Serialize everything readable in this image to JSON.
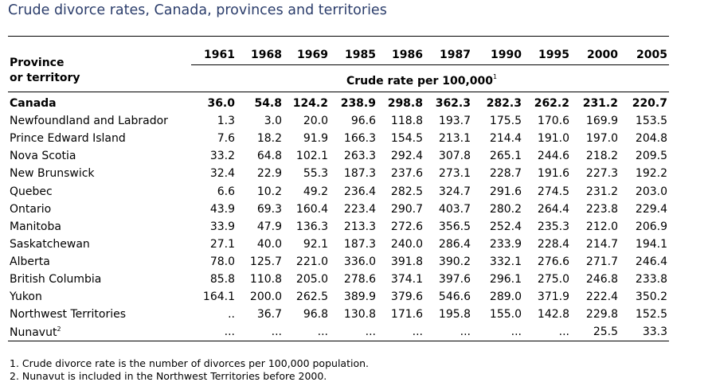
{
  "title": "Crude divorce rates, Canada, provinces and territories",
  "stub_header": [
    "Province",
    "or territory"
  ],
  "years": [
    "1961",
    "1968",
    "1969",
    "1985",
    "1986",
    "1987",
    "1990",
    "1995",
    "2000",
    "2005"
  ],
  "unit_label": "Crude rate per 100,000",
  "unit_note_ref": "1",
  "rows": [
    {
      "name": "Canada",
      "values": [
        "36.0",
        "54.8",
        "124.2",
        "238.9",
        "298.8",
        "362.3",
        "282.3",
        "262.2",
        "231.2",
        "220.7"
      ]
    },
    {
      "name": "Newfoundland and Labrador",
      "values": [
        "1.3",
        "3.0",
        "20.0",
        "96.6",
        "118.8",
        "193.7",
        "175.5",
        "170.6",
        "169.9",
        "153.5"
      ]
    },
    {
      "name": "Prince Edward Island",
      "values": [
        "7.6",
        "18.2",
        "91.9",
        "166.3",
        "154.5",
        "213.1",
        "214.4",
        "191.0",
        "197.0",
        "204.8"
      ]
    },
    {
      "name": "Nova Scotia",
      "values": [
        "33.2",
        "64.8",
        "102.1",
        "263.3",
        "292.4",
        "307.8",
        "265.1",
        "244.6",
        "218.2",
        "209.5"
      ]
    },
    {
      "name": "New Brunswick",
      "values": [
        "32.4",
        "22.9",
        "55.3",
        "187.3",
        "237.6",
        "273.1",
        "228.7",
        "191.6",
        "227.3",
        "192.2"
      ]
    },
    {
      "name": "Quebec",
      "values": [
        "6.6",
        "10.2",
        "49.2",
        "236.4",
        "282.5",
        "324.7",
        "291.6",
        "274.5",
        "231.2",
        "203.0"
      ]
    },
    {
      "name": "Ontario",
      "values": [
        "43.9",
        "69.3",
        "160.4",
        "223.4",
        "290.7",
        "403.7",
        "280.2",
        "264.4",
        "223.8",
        "229.4"
      ]
    },
    {
      "name": "Manitoba",
      "values": [
        "33.9",
        "47.9",
        "136.3",
        "213.3",
        "272.6",
        "356.5",
        "252.4",
        "235.3",
        "212.0",
        "206.9"
      ]
    },
    {
      "name": "Saskatchewan",
      "values": [
        "27.1",
        "40.0",
        "92.1",
        "187.3",
        "240.0",
        "286.4",
        "233.9",
        "228.4",
        "214.7",
        "194.1"
      ]
    },
    {
      "name": "Alberta",
      "values": [
        "78.0",
        "125.7",
        "221.0",
        "336.0",
        "391.8",
        "390.2",
        "332.1",
        "276.6",
        "271.7",
        "246.4"
      ]
    },
    {
      "name": "British Columbia",
      "values": [
        "85.8",
        "110.8",
        "205.0",
        "278.6",
        "374.1",
        "397.6",
        "296.1",
        "275.0",
        "246.8",
        "233.8"
      ]
    },
    {
      "name": "Yukon",
      "values": [
        "164.1",
        "200.0",
        "262.5",
        "389.9",
        "379.6",
        "546.6",
        "289.0",
        "371.9",
        "222.4",
        "350.2"
      ]
    },
    {
      "name": "Northwest Territories",
      "values": [
        "..",
        "36.7",
        "96.8",
        "130.8",
        "171.6",
        "195.8",
        "155.0",
        "142.8",
        "229.8",
        "152.5"
      ]
    },
    {
      "name": "Nunavut",
      "note_ref": "2",
      "values": [
        "...",
        "...",
        "...",
        "...",
        "...",
        "...",
        "...",
        "...",
        "25.5",
        "33.3"
      ]
    }
  ],
  "notes": [
    "1. Crude divorce rate is the number of divorces per 100,000 population.",
    "2. Nunavut is included in the Northwest Territories before 2000."
  ]
}
